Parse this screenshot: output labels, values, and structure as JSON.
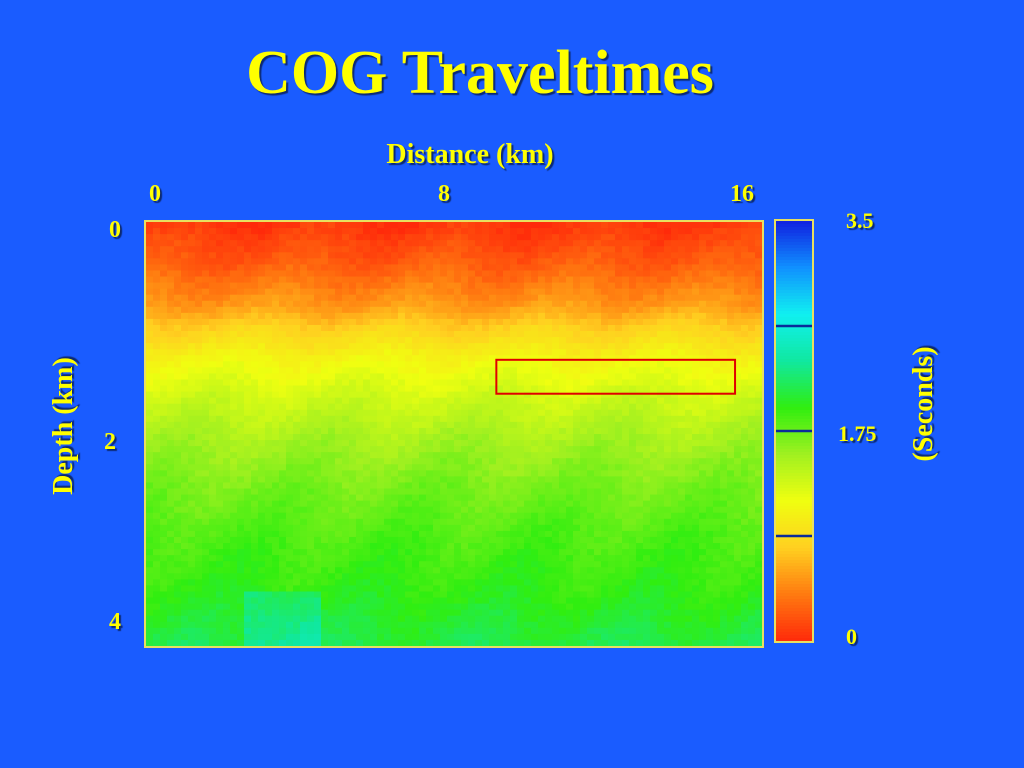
{
  "title": "COG Traveltimes",
  "chart_data": {
    "type": "heatmap",
    "title": "COG Traveltimes",
    "xlabel": "Distance (km)",
    "ylabel": "Depth (km)",
    "x_ticks": [
      "0",
      "8",
      "16"
    ],
    "y_ticks": [
      "0",
      "2",
      "4"
    ],
    "xlim": [
      0,
      16
    ],
    "ylim": [
      0,
      4
    ],
    "colorbar": {
      "label": "(Seconds)",
      "ticks": [
        "3.5",
        "1.75",
        "0"
      ],
      "range": [
        0,
        3.5
      ],
      "marker_values": [
        2.625,
        1.75,
        0.875
      ],
      "marker_color": "#0a2a9a",
      "colormap": [
        "#ff2a0a",
        "#ff7a10",
        "#ffd020",
        "#f0ff10",
        "#a0f020",
        "#30ee10",
        "#10e8a0",
        "#10f0f0",
        "#1090ff",
        "#1020e0"
      ]
    },
    "depth_profile": {
      "depth_km": [
        0,
        0.4,
        0.8,
        1.0,
        1.3,
        1.6,
        2.0,
        2.5,
        3.0,
        3.5,
        4.0
      ],
      "traveltime_s": [
        0.05,
        0.25,
        0.55,
        0.8,
        1.1,
        1.3,
        1.5,
        1.7,
        1.85,
        1.95,
        2.1
      ]
    },
    "annotation_box": {
      "x_range_km": [
        9.1,
        15.3
      ],
      "depth_range_km": [
        1.3,
        1.62
      ],
      "color": "#e00000"
    }
  },
  "colors": {
    "background": "#1a5cff",
    "text": "#ffff00",
    "frame": "#e8e060"
  }
}
